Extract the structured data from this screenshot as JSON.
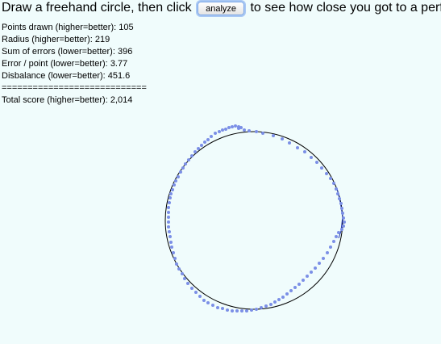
{
  "instruction": {
    "before": "Draw a freehand circle, then click",
    "button_label": "analyze",
    "after": "to see how close you got to a perfect circle."
  },
  "stats": [
    {
      "label": "Points drawn (higher=better):",
      "value": "105"
    },
    {
      "label": "Radius (higher=better):",
      "value": "219"
    },
    {
      "label": "Sum of errors (lower=better):",
      "value": "396"
    },
    {
      "label": "Error / point (lower=better):",
      "value": "3.77"
    },
    {
      "label": "Disbalance (lower=better):",
      "value": "451.6"
    }
  ],
  "separator": "============================",
  "total": {
    "label": "Total score (higher=better):",
    "value": "2,014"
  },
  "colors": {
    "background": "#f0fcfc",
    "point": "#7b8fe6",
    "circle": "#000000"
  }
}
